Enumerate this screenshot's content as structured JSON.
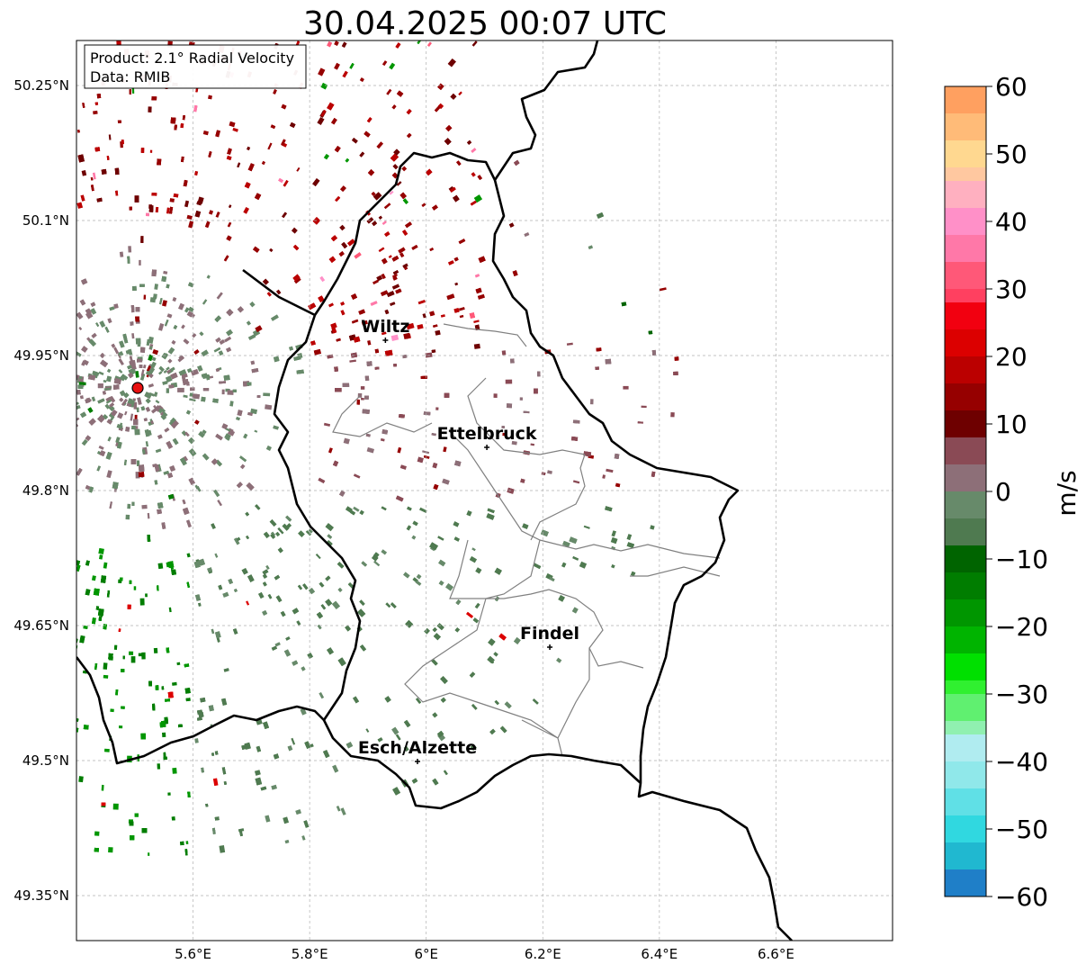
{
  "title": "30.04.2025 00:07 UTC",
  "info_box": {
    "product": "Product: 2.1° Radial Velocity",
    "source": "Data: RMIB"
  },
  "map": {
    "lon_range": [
      5.4,
      6.8
    ],
    "lat_range": [
      49.3,
      50.3
    ],
    "lon_ticks": [
      {
        "value": 5.6,
        "label": "5.6°E"
      },
      {
        "value": 5.8,
        "label": "5.8°E"
      },
      {
        "value": 6.0,
        "label": "6°E"
      },
      {
        "value": 6.2,
        "label": "6.2°E"
      },
      {
        "value": 6.4,
        "label": "6.4°E"
      },
      {
        "value": 6.6,
        "label": "6.6°E"
      }
    ],
    "lat_ticks": [
      {
        "value": 50.25,
        "label": "50.25°N"
      },
      {
        "value": 50.1,
        "label": "50.1°N"
      },
      {
        "value": 49.95,
        "label": "49.95°N"
      },
      {
        "value": 49.8,
        "label": "49.8°N"
      },
      {
        "value": 49.65,
        "label": "49.65°N"
      },
      {
        "value": 49.5,
        "label": "49.5°N"
      },
      {
        "value": 49.35,
        "label": "49.35°N"
      }
    ],
    "radar_site": {
      "lon": 5.505,
      "lat": 49.914
    },
    "cities": [
      {
        "name": "Wiltz",
        "lon": 5.93,
        "lat": 49.967
      },
      {
        "name": "Ettelbruck",
        "lon": 6.104,
        "lat": 49.848
      },
      {
        "name": "Findel",
        "lon": 6.212,
        "lat": 49.626
      },
      {
        "name": "Esch/Alzette",
        "lon": 5.985,
        "lat": 49.499
      }
    ]
  },
  "colorbar": {
    "label": "m/s",
    "min": -60,
    "max": 60,
    "ticks": [
      {
        "value": 60,
        "label": "60"
      },
      {
        "value": 50,
        "label": "50"
      },
      {
        "value": 40,
        "label": "40"
      },
      {
        "value": 30,
        "label": "30"
      },
      {
        "value": 20,
        "label": "20"
      },
      {
        "value": 10,
        "label": "10"
      },
      {
        "value": 0,
        "label": "0"
      },
      {
        "value": -10,
        "label": "−10"
      },
      {
        "value": -20,
        "label": "−20"
      },
      {
        "value": -30,
        "label": "−30"
      },
      {
        "value": -40,
        "label": "−40"
      },
      {
        "value": -50,
        "label": "−50"
      },
      {
        "value": -60,
        "label": "−60"
      }
    ],
    "bands": [
      {
        "from": 56,
        "to": 60,
        "color": "#ffa060"
      },
      {
        "from": 52,
        "to": 56,
        "color": "#ffbb78"
      },
      {
        "from": 48,
        "to": 52,
        "color": "#ffd890"
      },
      {
        "from": 46,
        "to": 48,
        "color": "#ffc8a0"
      },
      {
        "from": 42,
        "to": 46,
        "color": "#ffb0c0"
      },
      {
        "from": 38,
        "to": 42,
        "color": "#ff90c8"
      },
      {
        "from": 34,
        "to": 38,
        "color": "#ff78a8"
      },
      {
        "from": 30,
        "to": 34,
        "color": "#ff5878"
      },
      {
        "from": 28,
        "to": 30,
        "color": "#ff4060"
      },
      {
        "from": 24,
        "to": 28,
        "color": "#f20010"
      },
      {
        "from": 20,
        "to": 24,
        "color": "#dc0000"
      },
      {
        "from": 16,
        "to": 20,
        "color": "#bb0000"
      },
      {
        "from": 12,
        "to": 16,
        "color": "#960000"
      },
      {
        "from": 8,
        "to": 12,
        "color": "#6e0000"
      },
      {
        "from": 4,
        "to": 8,
        "color": "#8a4a55"
      },
      {
        "from": 0,
        "to": 4,
        "color": "#8d6f78"
      },
      {
        "from": -4,
        "to": 0,
        "color": "#678a6a"
      },
      {
        "from": -8,
        "to": -4,
        "color": "#4f7a50"
      },
      {
        "from": -12,
        "to": -8,
        "color": "#006400"
      },
      {
        "from": -16,
        "to": -12,
        "color": "#007d00"
      },
      {
        "from": -20,
        "to": -16,
        "color": "#009600"
      },
      {
        "from": -24,
        "to": -20,
        "color": "#00b400"
      },
      {
        "from": -28,
        "to": -24,
        "color": "#00e000"
      },
      {
        "from": -30,
        "to": -28,
        "color": "#30f030"
      },
      {
        "from": -34,
        "to": -30,
        "color": "#60f070"
      },
      {
        "from": -36,
        "to": -34,
        "color": "#90f0b0"
      },
      {
        "from": -40,
        "to": -36,
        "color": "#b0ecf0"
      },
      {
        "from": -44,
        "to": -40,
        "color": "#90e8ea"
      },
      {
        "from": -48,
        "to": -44,
        "color": "#60e0e6"
      },
      {
        "from": -52,
        "to": -48,
        "color": "#30d8e0"
      },
      {
        "from": -56,
        "to": -52,
        "color": "#20b8d0"
      },
      {
        "from": -60,
        "to": -56,
        "color": "#1f7fc8"
      }
    ]
  }
}
